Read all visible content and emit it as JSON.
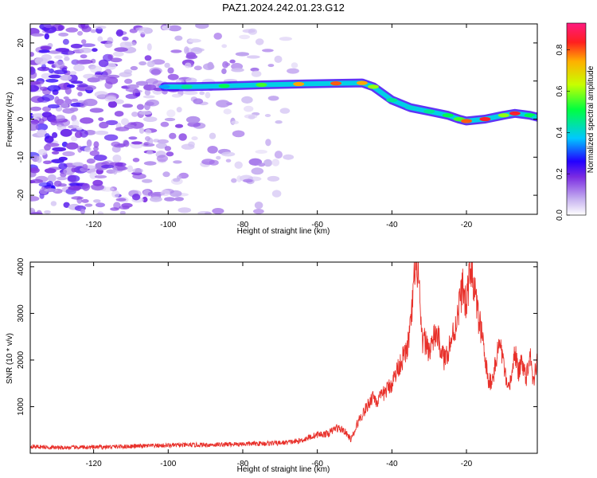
{
  "figure_title": "PAZ1.2024.242.01.23.G12",
  "colors": {
    "snr_line": "#e8302a",
    "colorbar_stops": [
      "#ffffff",
      "#c8b4f0",
      "#7a2be2",
      "#2200ff",
      "#00c8ff",
      "#00ff40",
      "#c8ff00",
      "#ffb000",
      "#ff1f1f",
      "#ff1a80"
    ]
  },
  "chart_data": [
    {
      "type": "heatmap",
      "title": "",
      "xlabel": "Height of straight line (km)",
      "ylabel": "Frequency (Hz)",
      "xlim": [
        -137,
        -1
      ],
      "ylim": [
        -25,
        25
      ],
      "xticks": [
        -120,
        -100,
        -80,
        -60,
        -40,
        -20
      ],
      "yticks": [
        -20,
        -10,
        0,
        10,
        20
      ],
      "colorbar": {
        "label": "Normalized spectral amplitude",
        "range": [
          0,
          0.93
        ],
        "ticks": [
          0.0,
          0.2,
          0.4,
          0.6,
          0.8
        ]
      },
      "ridge": {
        "description_units": "frequency (Hz) vs height (km)",
        "x": [
          -101,
          -95,
          -85,
          -75,
          -65,
          -55,
          -48,
          -45,
          -40,
          -35,
          -30,
          -25,
          -22,
          -20,
          -15,
          -10,
          -7,
          -3,
          -1
        ],
        "y": [
          8.5,
          8.5,
          8.7,
          9.0,
          9.2,
          9.4,
          9.5,
          8.5,
          5.0,
          3.0,
          2.0,
          1.0,
          0.0,
          -0.5,
          0.0,
          1.0,
          1.5,
          1.0,
          0.5
        ],
        "amplitude": [
          0.35,
          0.45,
          0.5,
          0.55,
          0.75,
          0.8,
          0.75,
          0.6,
          0.45,
          0.4,
          0.45,
          0.5,
          0.55,
          0.8,
          0.85,
          0.6,
          0.85,
          0.5,
          0.4
        ]
      }
    },
    {
      "type": "line",
      "title": "",
      "xlabel": "Height of straight line (km)",
      "ylabel": "SNR (10 * v/v)",
      "xlim": [
        -137,
        -1
      ],
      "ylim": [
        0,
        4100
      ],
      "xticks": [
        -120,
        -100,
        -80,
        -60,
        -40,
        -20
      ],
      "yticks": [
        1000,
        2000,
        3000,
        4000
      ],
      "series": [
        {
          "x": [
            -137,
            -130,
            -120,
            -110,
            -100,
            -90,
            -80,
            -70,
            -65,
            -60,
            -57,
            -55,
            -53,
            -51,
            -50,
            -49,
            -47,
            -45,
            -44,
            -42,
            -40,
            -38,
            -36,
            -35,
            -34,
            -33,
            -32,
            -31,
            -30,
            -28,
            -26,
            -25,
            -23,
            -21,
            -20,
            -19,
            -18,
            -17,
            -16,
            -15,
            -14,
            -13,
            -12,
            -11,
            -10,
            -9,
            -8,
            -7,
            -6,
            -5,
            -4,
            -3,
            -2,
            -1
          ],
          "y": [
            150,
            120,
            130,
            150,
            170,
            180,
            200,
            220,
            260,
            400,
            420,
            550,
            500,
            300,
            450,
            700,
            950,
            1250,
            1100,
            1300,
            1500,
            1900,
            2200,
            2700,
            3700,
            4000,
            2400,
            2400,
            2200,
            2600,
            2000,
            2200,
            2700,
            3600,
            3100,
            4050,
            3600,
            3000,
            2600,
            2000,
            1500,
            1600,
            2000,
            2400,
            1900,
            1300,
            1600,
            2200,
            1700,
            2000,
            1600,
            2200,
            1500,
            2100
          ]
        }
      ]
    }
  ]
}
